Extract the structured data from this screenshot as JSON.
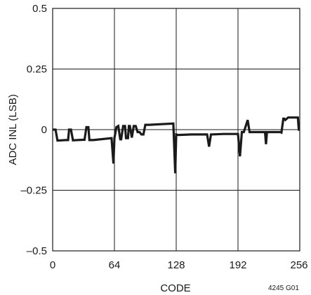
{
  "chart_data": {
    "type": "line",
    "title": "",
    "xlabel": "CODE",
    "ylabel": "ADC INL (LSB)",
    "figure_id": "4245 G01",
    "xlim": [
      0,
      256
    ],
    "ylim": [
      -0.5,
      0.5
    ],
    "grid": true,
    "legend": "none",
    "x_ticks": [
      0,
      64,
      128,
      192,
      256
    ],
    "x_tick_labels": [
      "0",
      "64",
      "128",
      "192",
      "256"
    ],
    "y_ticks": [
      0.5,
      0.25,
      0,
      -0.25,
      -0.5
    ],
    "y_tick_labels": [
      "0.5",
      "0.25",
      "0",
      "–0.25",
      "–0.5"
    ],
    "line_color": "#1a1a1a",
    "series": [
      {
        "x": [
          0,
          3,
          5,
          14,
          16,
          17,
          19,
          21,
          31,
          33,
          35,
          37,
          38,
          40,
          42,
          61,
          63,
          64,
          66,
          68,
          70,
          71,
          73,
          75,
          76,
          78,
          79,
          80,
          82,
          84,
          86,
          88,
          90,
          92,
          94,
          96,
          98,
          100,
          125,
          127,
          128,
          130,
          144,
          160,
          162,
          164,
          177,
          192,
          194,
          196,
          198,
          202,
          204,
          206,
          218,
          220,
          221,
          222,
          224,
          236,
          237,
          239,
          240,
          241,
          244,
          254,
          255,
          256
        ],
        "y": [
          0.0,
          0.0,
          -0.045,
          -0.043,
          -0.043,
          0.0,
          0.0,
          -0.044,
          -0.042,
          -0.042,
          0.01,
          0.01,
          -0.043,
          -0.043,
          -0.043,
          -0.035,
          -0.14,
          -0.035,
          0.01,
          0.015,
          -0.04,
          -0.04,
          0.015,
          0.015,
          -0.035,
          -0.035,
          0.015,
          0.015,
          -0.033,
          0.015,
          0.015,
          -0.01,
          -0.01,
          -0.02,
          -0.02,
          0.02,
          0.02,
          0.02,
          0.025,
          -0.18,
          -0.02,
          -0.022,
          -0.02,
          -0.02,
          -0.07,
          -0.02,
          -0.018,
          -0.018,
          -0.11,
          -0.01,
          -0.01,
          0.04,
          -0.01,
          -0.01,
          -0.01,
          -0.01,
          -0.06,
          -0.01,
          -0.01,
          -0.01,
          -0.012,
          0.045,
          0.045,
          0.04,
          0.05,
          0.05,
          0.0,
          0.0
        ]
      }
    ]
  }
}
